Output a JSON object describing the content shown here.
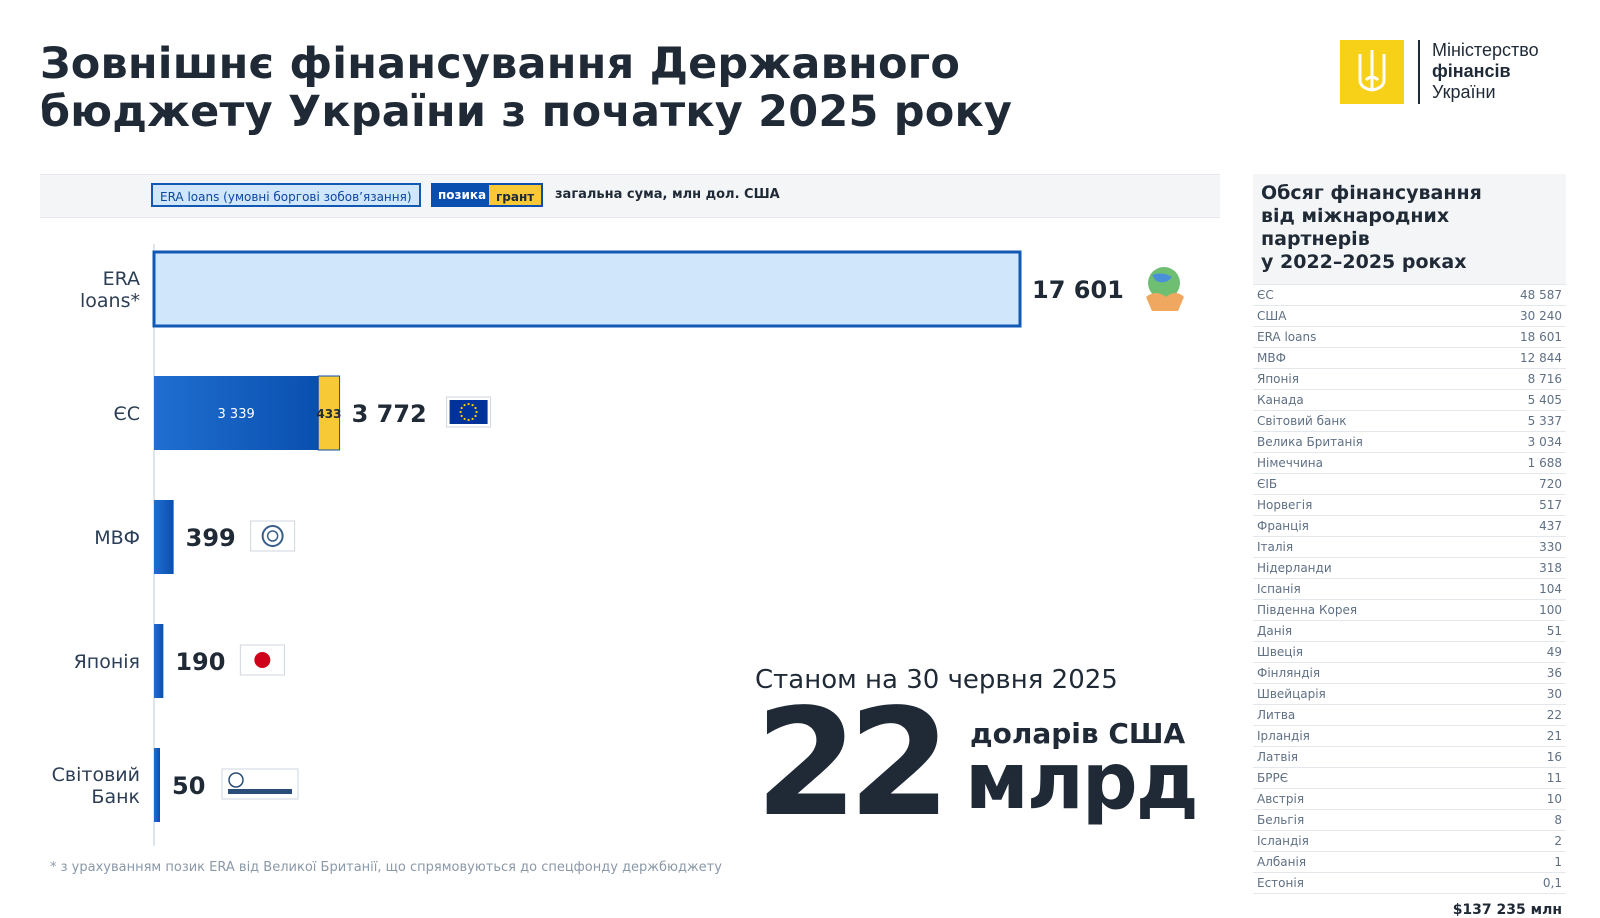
{
  "header": {
    "title_line1": "Зовнішнє фінансування Державного",
    "title_line2": "бюджету України з початку 2025 року"
  },
  "logo": {
    "line1": "Міністерство",
    "line2": "фінансів",
    "line3": "України"
  },
  "legend": {
    "era": "ERA loans (умовні боргові зобов’язання)",
    "loan": "позика",
    "grant": "грант",
    "note": "загальна сума, млн дол. США"
  },
  "colors": {
    "era_fill": "#cfe6fb",
    "era_stroke": "#1259b3",
    "loan": "#0a4fb0",
    "grant": "#f7c936",
    "axis": "#bfc8d2"
  },
  "chart_data": {
    "type": "bar",
    "orientation": "horizontal",
    "stacked": true,
    "unit": "млн дол. США",
    "categories": [
      "ERA loans*",
      "ЄС",
      "МВФ",
      "Японія",
      "Світовий Банк"
    ],
    "series": [
      {
        "name": "ERA loans (умовні боргові зобов’язання)",
        "values": [
          17601,
          0,
          0,
          0,
          0
        ]
      },
      {
        "name": "позика",
        "values": [
          0,
          3339,
          399,
          190,
          50
        ]
      },
      {
        "name": "грант",
        "values": [
          0,
          433,
          0,
          0,
          0
        ]
      }
    ],
    "totals": [
      "17 601",
      "3 772",
      "399",
      "190",
      "50"
    ],
    "segment_labels": {
      "ЄС": [
        "3 339",
        "433"
      ]
    },
    "icons": [
      "handshake-globe-icon",
      "eu-flag-icon",
      "imf-logo-icon",
      "japan-flag-icon",
      "world-bank-logo-icon"
    ],
    "grid": false
  },
  "summary": {
    "asof": "Станом на 30 червня 2025",
    "big_number": "22",
    "unit": "млрд",
    "currency": "доларів США"
  },
  "footnote": "* з урахуванням позик ERA від Великої Британії, що спрямовуються до спецфонду держбюджету",
  "side_table": {
    "title_line1": "Обсяг фінансування",
    "title_line2": "від міжнародних партнерів",
    "title_line3": "у 2022–2025 роках",
    "rows": [
      {
        "name": "ЄС",
        "value": "48 587"
      },
      {
        "name": "США",
        "value": "30 240"
      },
      {
        "name": "ERA loans",
        "value": "18 601"
      },
      {
        "name": "МВФ",
        "value": "12 844"
      },
      {
        "name": "Японія",
        "value": "8 716"
      },
      {
        "name": "Канада",
        "value": "5 405"
      },
      {
        "name": "Світовий банк",
        "value": "5 337"
      },
      {
        "name": "Велика Британія",
        "value": "3 034"
      },
      {
        "name": "Німеччина",
        "value": "1 688"
      },
      {
        "name": "ЄІБ",
        "value": "720"
      },
      {
        "name": "Норвегія",
        "value": "517"
      },
      {
        "name": "Франція",
        "value": "437"
      },
      {
        "name": "Італія",
        "value": "330"
      },
      {
        "name": "Нідерланди",
        "value": "318"
      },
      {
        "name": "Іспанія",
        "value": "104"
      },
      {
        "name": "Південна Корея",
        "value": "100"
      },
      {
        "name": "Данія",
        "value": "51"
      },
      {
        "name": "Швеція",
        "value": "49"
      },
      {
        "name": "Фінляндія",
        "value": "36"
      },
      {
        "name": "Швейцарія",
        "value": "30"
      },
      {
        "name": "Литва",
        "value": "22"
      },
      {
        "name": "Ірландія",
        "value": "21"
      },
      {
        "name": "Латвія",
        "value": "16"
      },
      {
        "name": "БРРЄ",
        "value": "11"
      },
      {
        "name": "Австрія",
        "value": "10"
      },
      {
        "name": "Бельгія",
        "value": "8"
      },
      {
        "name": "Ісландія",
        "value": "2"
      },
      {
        "name": "Албанія",
        "value": "1"
      },
      {
        "name": "Естонія",
        "value": "0,1"
      }
    ],
    "total": "$137 235 млн"
  }
}
